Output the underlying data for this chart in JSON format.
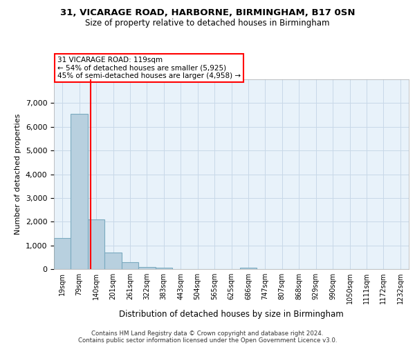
{
  "title1": "31, VICARAGE ROAD, HARBORNE, BIRMINGHAM, B17 0SN",
  "title2": "Size of property relative to detached houses in Birmingham",
  "xlabel": "Distribution of detached houses by size in Birmingham",
  "ylabel": "Number of detached properties",
  "bin_labels": [
    "19sqm",
    "79sqm",
    "140sqm",
    "201sqm",
    "261sqm",
    "322sqm",
    "383sqm",
    "443sqm",
    "504sqm",
    "565sqm",
    "625sqm",
    "686sqm",
    "747sqm",
    "807sqm",
    "868sqm",
    "929sqm",
    "990sqm",
    "1050sqm",
    "1111sqm",
    "1172sqm",
    "1232sqm"
  ],
  "bar_values": [
    1300,
    6550,
    2100,
    700,
    280,
    100,
    60,
    0,
    0,
    0,
    0,
    60,
    0,
    0,
    0,
    0,
    0,
    0,
    0,
    0,
    0
  ],
  "bar_color": "#b8d0df",
  "bar_edge_color": "#7aaabf",
  "bar_linewidth": 0.8,
  "red_line_x": 1.65,
  "annotation_line1": "31 VICARAGE ROAD: 119sqm",
  "annotation_line2": "← 54% of detached houses are smaller (5,925)",
  "annotation_line3": "45% of semi-detached houses are larger (4,958) →",
  "annotation_box_color": "white",
  "annotation_box_edge": "red",
  "ylim": [
    0,
    8000
  ],
  "yticks": [
    0,
    1000,
    2000,
    3000,
    4000,
    5000,
    6000,
    7000
  ],
  "grid_color": "#c8d8e8",
  "bg_color": "#e8f2fa",
  "footer1": "Contains HM Land Registry data © Crown copyright and database right 2024.",
  "footer2": "Contains public sector information licensed under the Open Government Licence v3.0."
}
